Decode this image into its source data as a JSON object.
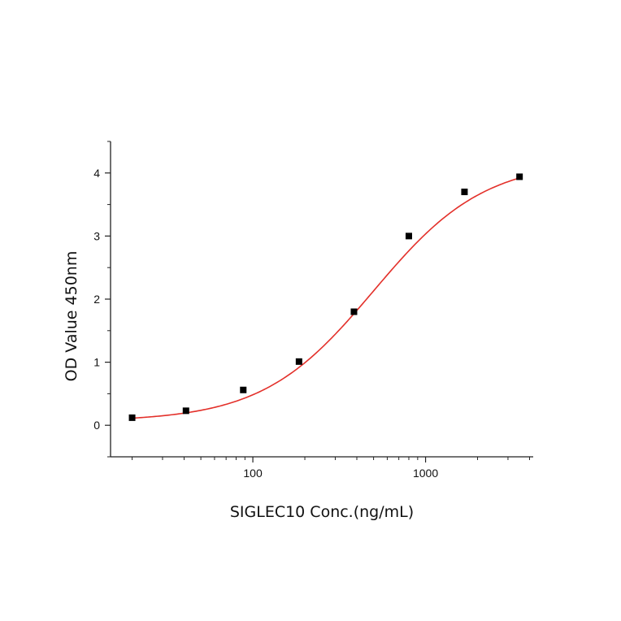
{
  "chart_data": {
    "type": "scatter",
    "xlabel": "SIGLEC10 Conc.(ng/mL)",
    "ylabel": "OD Value 450nm",
    "xscale": "log",
    "xlim": [
      15,
      4200
    ],
    "ylim": [
      -0.5,
      4.5
    ],
    "x_ticks": [
      100,
      1000
    ],
    "x_tick_labels": [
      "100",
      "1000"
    ],
    "y_ticks": [
      0,
      1,
      2,
      3,
      4
    ],
    "y_tick_labels": [
      "0",
      "1",
      "2",
      "3",
      "4"
    ],
    "grid": false,
    "legend": "none",
    "series": [
      {
        "kind": "points",
        "color": "#000000",
        "x": [
          20,
          41,
          88,
          185,
          385,
          800,
          1680,
          3500
        ],
        "y": [
          0.12,
          0.23,
          0.56,
          1.01,
          1.8,
          3.0,
          3.7,
          3.94
        ]
      },
      {
        "kind": "fit-curve",
        "color": "#e3302a",
        "model": "4PL",
        "params": {
          "bottom": 0.06,
          "top": 4.2,
          "ec50": 500,
          "hill": 1.35
        },
        "x_range": [
          20,
          3500
        ]
      }
    ]
  }
}
